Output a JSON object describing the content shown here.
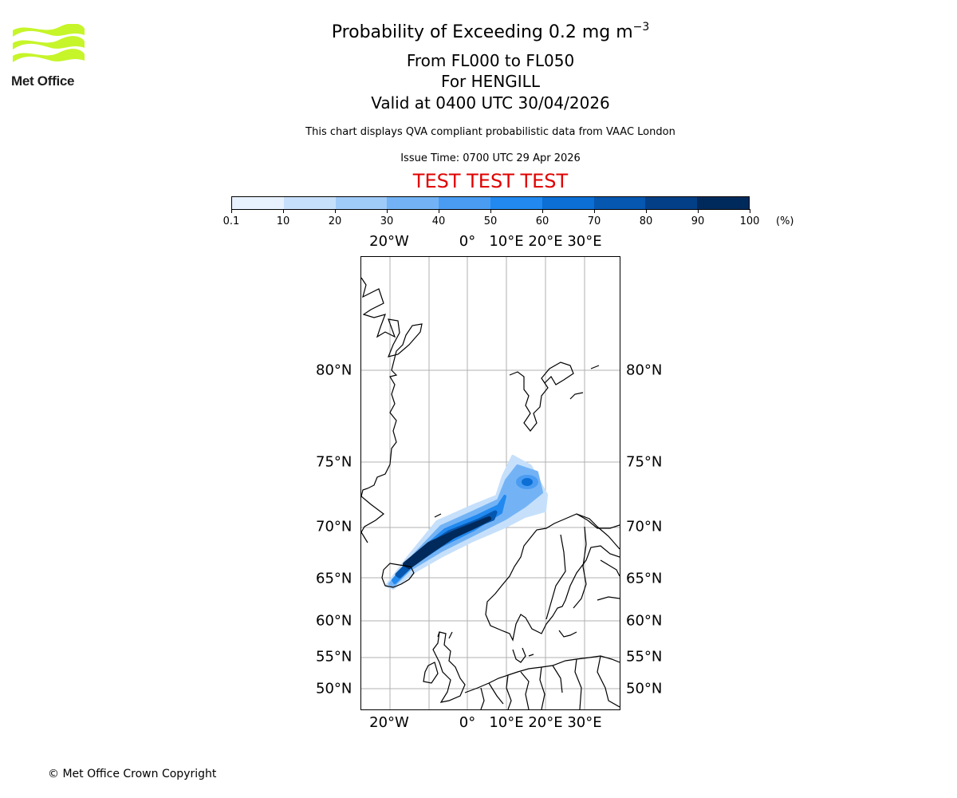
{
  "header": {
    "logo_text": "Met Office",
    "title_main": "Probability of Exceeding 0.2 mg m",
    "title_exp": "−3",
    "subtitle_levels": "From FL000 to FL050",
    "subtitle_volcano": "For HENGILL",
    "subtitle_valid": "Valid at 0400 UTC 30/04/2026",
    "note": "This chart displays QVA compliant probabilistic data from VAAC London",
    "issue_time": "Issue Time: 0700 UTC 29 Apr 2026",
    "test_banner": "TEST TEST TEST"
  },
  "colorbar": {
    "ticks": [
      "0.1",
      "10",
      "20",
      "30",
      "40",
      "50",
      "60",
      "70",
      "80",
      "90",
      "100"
    ],
    "unit": "(%)",
    "colors": [
      "#e8f2fe",
      "#c6e0fb",
      "#9fcbf8",
      "#73b3f5",
      "#4a9cf2",
      "#2189ef",
      "#0b6fd5",
      "#0557b0",
      "#023f86",
      "#012a5c"
    ]
  },
  "map": {
    "lon_labels": [
      "20°W",
      "0°",
      "10°E",
      "20°E",
      "30°E"
    ],
    "lat_labels": [
      "80°N",
      "75°N",
      "70°N",
      "65°N",
      "60°N",
      "55°N",
      "50°N"
    ],
    "gridline_color": "#b0b0b0",
    "coastline_color": "#000000"
  },
  "footer": {
    "copyright": "© Met Office Crown Copyright"
  }
}
